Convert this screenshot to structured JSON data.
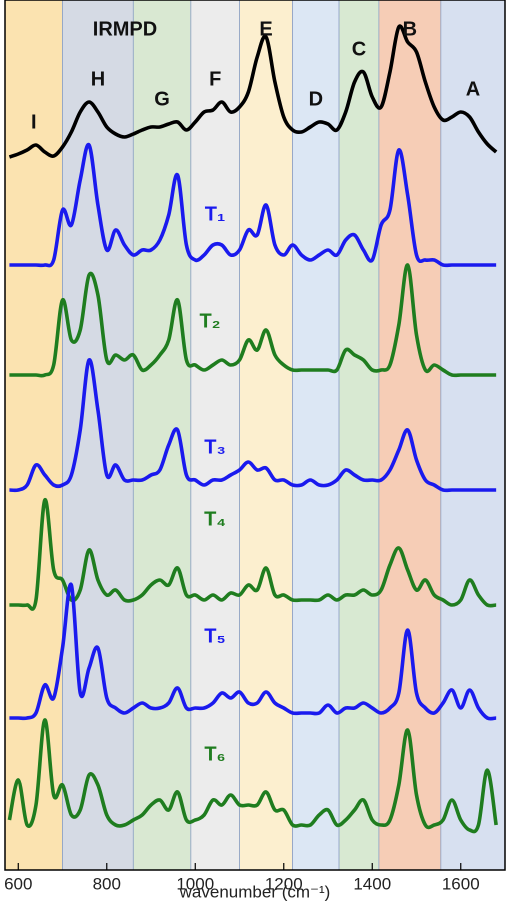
{
  "chart_data": {
    "type": "line",
    "x_label": "wavenumber (cm⁻¹)",
    "xlim": [
      570,
      1700
    ],
    "xticks": [
      600,
      800,
      1000,
      1200,
      1400,
      1600
    ],
    "bands": [
      {
        "label": "I",
        "from": 570,
        "to": 700,
        "color": "#fbe3b0"
      },
      {
        "label": "H",
        "from": 700,
        "to": 860,
        "color": "#d5dae4"
      },
      {
        "label": "G",
        "from": 860,
        "to": 990,
        "color": "#d9e8d2"
      },
      {
        "label": "F",
        "from": 990,
        "to": 1100,
        "color": "#ececec"
      },
      {
        "label": "E",
        "from": 1100,
        "to": 1220,
        "color": "#fcefcf"
      },
      {
        "label": "D",
        "from": 1220,
        "to": 1325,
        "color": "#dce7f4"
      },
      {
        "label": "C",
        "from": 1325,
        "to": 1415,
        "color": "#d8e9d2"
      },
      {
        "label": "B",
        "from": 1415,
        "to": 1555,
        "color": "#f6cdb6"
      },
      {
        "label": "A",
        "from": 1555,
        "to": 1700,
        "color": "#d7e0f0"
      }
    ],
    "x": [
      580,
      600,
      620,
      640,
      660,
      680,
      700,
      720,
      740,
      760,
      780,
      800,
      820,
      840,
      860,
      880,
      900,
      920,
      940,
      960,
      980,
      1000,
      1020,
      1040,
      1060,
      1080,
      1100,
      1120,
      1140,
      1160,
      1180,
      1200,
      1220,
      1240,
      1260,
      1280,
      1300,
      1320,
      1340,
      1360,
      1380,
      1400,
      1420,
      1440,
      1460,
      1480,
      1500,
      1520,
      1540,
      1560,
      1580,
      1600,
      1620,
      1640,
      1660,
      1680
    ],
    "series": [
      {
        "name": "IRMPD",
        "color": "#000000",
        "values": [
          5,
          8,
          12,
          17,
          10,
          6,
          15,
          30,
          50,
          60,
          50,
          35,
          28,
          25,
          28,
          32,
          35,
          35,
          38,
          40,
          32,
          40,
          50,
          52,
          60,
          50,
          55,
          70,
          105,
          125,
          80,
          45,
          32,
          30,
          35,
          40,
          38,
          32,
          50,
          80,
          90,
          65,
          55,
          90,
          135,
          120,
          110,
          80,
          55,
          42,
          45,
          50,
          45,
          30,
          18,
          10
        ]
      },
      {
        "name": "T₁",
        "color": "#1a1aee",
        "values": [
          0,
          0,
          0,
          0,
          0,
          5,
          55,
          40,
          85,
          120,
          60,
          15,
          35,
          20,
          10,
          15,
          15,
          25,
          50,
          90,
          20,
          5,
          10,
          20,
          20,
          10,
          15,
          35,
          30,
          60,
          20,
          10,
          20,
          10,
          5,
          10,
          15,
          10,
          25,
          30,
          15,
          5,
          40,
          55,
          115,
          70,
          10,
          5,
          5,
          0,
          0,
          0,
          0,
          0,
          0,
          0
        ]
      },
      {
        "name": "T₂",
        "color": "#1f7d1f",
        "values": [
          0,
          0,
          0,
          0,
          0,
          10,
          75,
          35,
          45,
          100,
          80,
          15,
          20,
          15,
          20,
          5,
          10,
          20,
          35,
          75,
          15,
          10,
          5,
          10,
          15,
          10,
          15,
          35,
          25,
          45,
          20,
          10,
          5,
          5,
          5,
          5,
          5,
          5,
          25,
          20,
          15,
          5,
          5,
          10,
          50,
          110,
          40,
          5,
          10,
          5,
          0,
          0,
          0,
          0,
          0,
          0
        ]
      },
      {
        "name": "T₃",
        "color": "#1a1aee",
        "values": [
          0,
          0,
          5,
          25,
          15,
          5,
          5,
          15,
          60,
          130,
          80,
          15,
          25,
          10,
          10,
          10,
          15,
          20,
          45,
          60,
          15,
          10,
          5,
          10,
          10,
          15,
          20,
          28,
          20,
          22,
          10,
          10,
          5,
          5,
          10,
          5,
          5,
          10,
          20,
          15,
          10,
          10,
          10,
          20,
          40,
          60,
          30,
          10,
          5,
          0,
          0,
          0,
          0,
          0,
          0,
          0
        ]
      },
      {
        "name": "T₄",
        "color": "#1f7d1f",
        "values": [
          0,
          0,
          0,
          5,
          105,
          35,
          25,
          5,
          15,
          55,
          25,
          10,
          15,
          5,
          5,
          10,
          20,
          25,
          20,
          37,
          10,
          10,
          5,
          10,
          5,
          12,
          10,
          20,
          15,
          37,
          10,
          10,
          5,
          5,
          5,
          5,
          10,
          5,
          10,
          10,
          15,
          10,
          15,
          40,
          57,
          35,
          15,
          25,
          10,
          5,
          0,
          5,
          25,
          10,
          0,
          0
        ]
      },
      {
        "name": "T₅",
        "color": "#1a1aee",
        "values": [
          0,
          0,
          0,
          5,
          33,
          20,
          70,
          133,
          25,
          50,
          70,
          20,
          10,
          5,
          10,
          15,
          10,
          10,
          15,
          30,
          10,
          10,
          10,
          15,
          25,
          20,
          26,
          15,
          15,
          26,
          15,
          10,
          5,
          5,
          5,
          5,
          13,
          5,
          10,
          10,
          15,
          10,
          5,
          10,
          25,
          88,
          25,
          10,
          5,
          15,
          28,
          10,
          28,
          10,
          0,
          0
        ]
      },
      {
        "name": "T₆",
        "color": "#1f7d1f",
        "values": [
          15,
          55,
          10,
          30,
          115,
          40,
          50,
          20,
          25,
          60,
          50,
          20,
          10,
          10,
          15,
          20,
          30,
          35,
          25,
          43,
          15,
          15,
          20,
          35,
          30,
          40,
          30,
          30,
          30,
          43,
          25,
          25,
          10,
          10,
          10,
          20,
          25,
          10,
          15,
          25,
          35,
          15,
          10,
          15,
          50,
          105,
          40,
          10,
          10,
          15,
          35,
          15,
          5,
          10,
          65,
          10
        ]
      }
    ]
  }
}
